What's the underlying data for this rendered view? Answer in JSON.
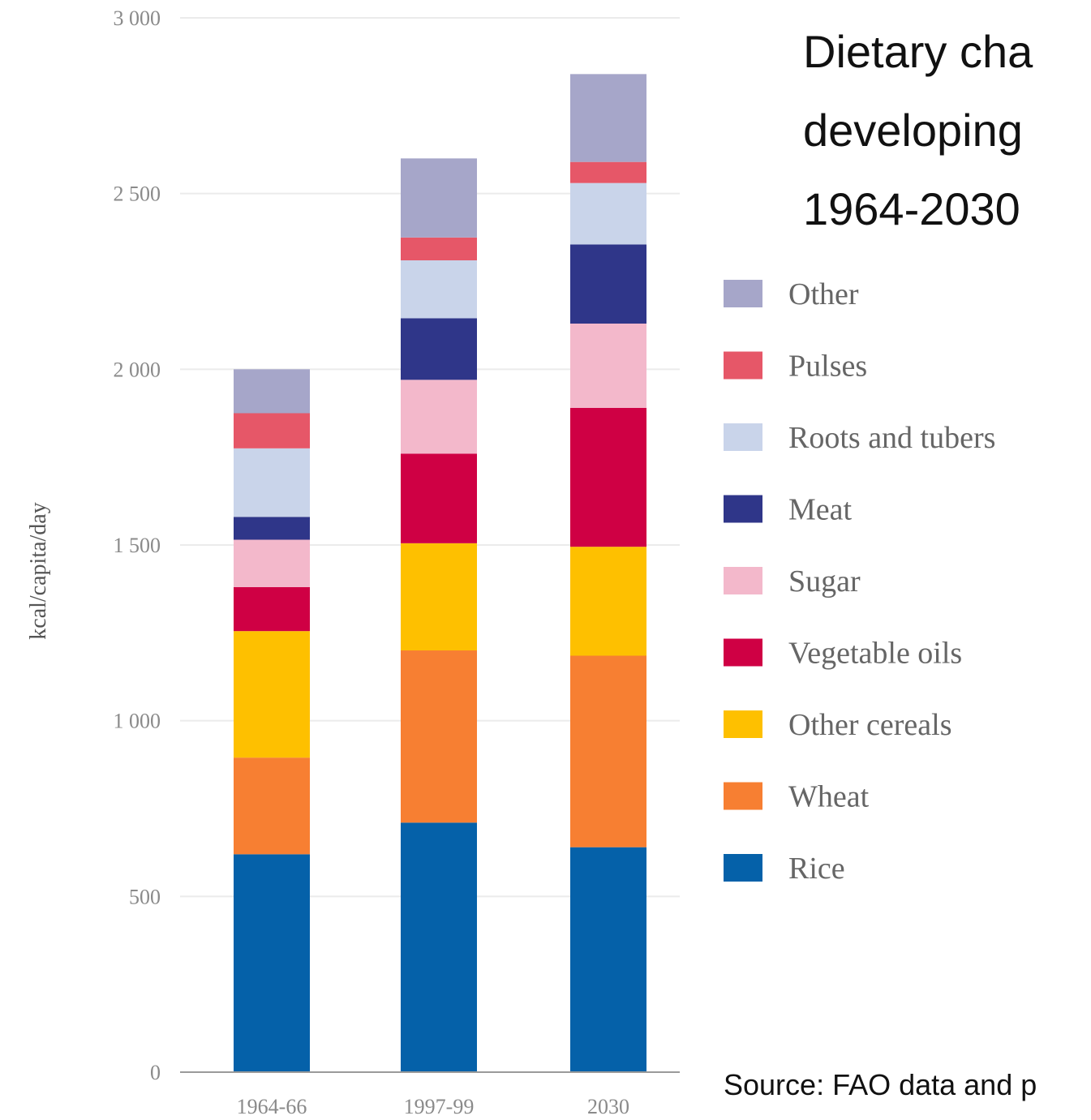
{
  "chart_data": {
    "type": "bar",
    "stacked": true,
    "title_lines": [
      "Dietary cha",
      "developing",
      "1964-2030"
    ],
    "source": "Source: FAO data and p",
    "ylabel": "kcal/capita/day",
    "xlabel": "",
    "ylim": [
      0,
      3000
    ],
    "yticks": [
      0,
      500,
      1000,
      1500,
      2000,
      2500,
      3000
    ],
    "ytick_labels": [
      "0",
      "500",
      "1 000",
      "1 500",
      "2 000",
      "2 500",
      "3 000"
    ],
    "grid": "horizontal",
    "legend_position": "right",
    "categories": [
      "1964-66",
      "1997-99",
      "2030"
    ],
    "series": [
      {
        "name": "Rice",
        "color": "#0561a9",
        "values": [
          620,
          710,
          640
        ]
      },
      {
        "name": "Wheat",
        "color": "#f77f32",
        "values": [
          275,
          490,
          545
        ]
      },
      {
        "name": "Other cereals",
        "color": "#fec000",
        "values": [
          360,
          305,
          310
        ]
      },
      {
        "name": "Vegetable oils",
        "color": "#cf0044",
        "values": [
          125,
          255,
          395
        ]
      },
      {
        "name": "Sugar",
        "color": "#f3b8cb",
        "values": [
          135,
          210,
          240
        ]
      },
      {
        "name": "Meat",
        "color": "#2f3689",
        "values": [
          65,
          175,
          225
        ]
      },
      {
        "name": "Roots and tubers",
        "color": "#c9d4ea",
        "values": [
          195,
          165,
          175
        ]
      },
      {
        "name": "Pulses",
        "color": "#e65768",
        "values": [
          100,
          65,
          60
        ]
      },
      {
        "name": "Other",
        "color": "#a6a6c9",
        "values": [
          125,
          225,
          250
        ]
      }
    ]
  }
}
